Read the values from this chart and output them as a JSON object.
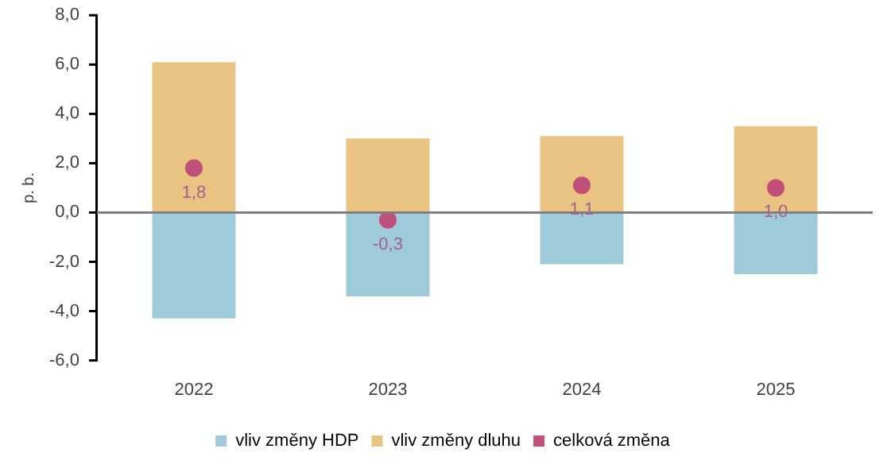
{
  "chart_data": {
    "type": "bar",
    "stacked": true,
    "ylabel": "p. b.",
    "categories": [
      "2022",
      "2023",
      "2024",
      "2025"
    ],
    "series": [
      {
        "name": "vliv změny HDP",
        "color": "#9fcad9",
        "values": [
          -4.3,
          -3.4,
          -2.1,
          -2.5
        ]
      },
      {
        "name": "vliv změny dluhu",
        "color": "#e9c381",
        "values": [
          6.1,
          3.0,
          3.1,
          3.5
        ]
      },
      {
        "name": "celková změna",
        "type": "scatter",
        "marker": "circle",
        "color": "#c0507a",
        "values": [
          1.8,
          -0.3,
          1.1,
          1.0
        ],
        "value_labels": [
          "1,8",
          "-0,3",
          "1,1",
          "1,0"
        ]
      }
    ],
    "ylim": [
      -6,
      8
    ],
    "yticks": [
      {
        "value": -6,
        "label": "-6,0"
      },
      {
        "value": -4,
        "label": "-4,0"
      },
      {
        "value": -2,
        "label": "-2,0"
      },
      {
        "value": 0,
        "label": "0,0"
      },
      {
        "value": 2,
        "label": "2,0"
      },
      {
        "value": 4,
        "label": "4,0"
      },
      {
        "value": 6,
        "label": "6,0"
      },
      {
        "value": 8,
        "label": "8,0"
      }
    ],
    "legend": "bottom"
  }
}
